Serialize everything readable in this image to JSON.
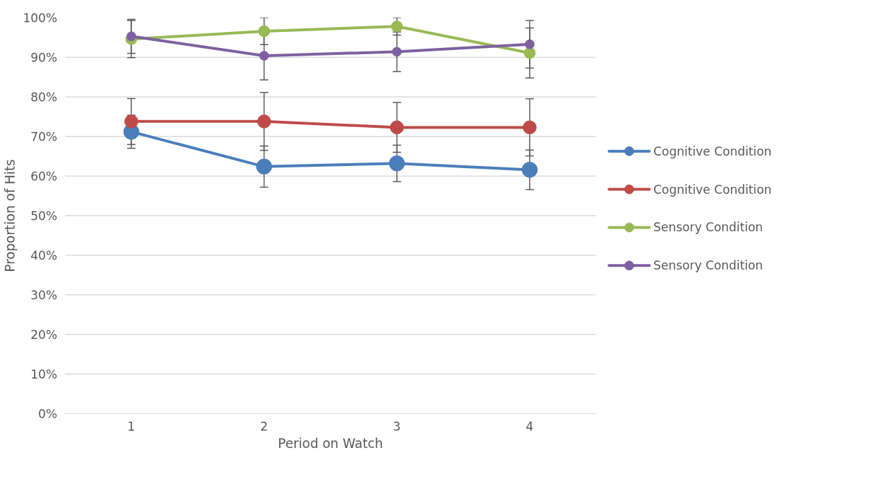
{
  "chart_data": {
    "type": "line",
    "xlabel": "Period on Watch",
    "ylabel": "Proportion of Hits",
    "categories": [
      "1",
      "2",
      "3",
      "4"
    ],
    "ylim": [
      0,
      100
    ],
    "yticks": [
      {
        "value": 0,
        "label": "0%"
      },
      {
        "value": 10,
        "label": "10%"
      },
      {
        "value": 20,
        "label": "20%"
      },
      {
        "value": 30,
        "label": "30%"
      },
      {
        "value": 40,
        "label": "40%"
      },
      {
        "value": 50,
        "label": "50%"
      },
      {
        "value": 60,
        "label": "60%"
      },
      {
        "value": 70,
        "label": "70%"
      },
      {
        "value": 80,
        "label": "80%"
      },
      {
        "value": 90,
        "label": "90%"
      },
      {
        "value": 100,
        "label": "100%"
      }
    ],
    "grid": "y",
    "legend": "right",
    "marker": "circle",
    "line_style": "solid",
    "series": [
      {
        "name": "Cognitive Condition",
        "color": "#4a7ebb",
        "values": [
          71.2,
          62.4,
          63.2,
          61.6
        ],
        "errors": [
          4.2,
          5.2,
          4.6,
          5.0
        ]
      },
      {
        "name": "Cognitive Condition",
        "color": "#be4b48",
        "values": [
          73.8,
          73.8,
          72.3,
          72.3
        ],
        "errors": [
          5.8,
          7.3,
          6.3,
          7.2
        ]
      },
      {
        "name": "Sensory Condition",
        "color": "#98b954",
        "values": [
          94.6,
          96.6,
          97.8,
          91.1
        ],
        "errors": [
          4.7,
          3.4,
          2.2,
          6.3
        ]
      },
      {
        "name": "Sensory Condition",
        "color": "#7d60a0",
        "values": [
          95.3,
          90.4,
          91.4,
          93.3
        ],
        "errors": [
          4.3,
          6.1,
          5.0,
          6.0
        ]
      }
    ]
  }
}
